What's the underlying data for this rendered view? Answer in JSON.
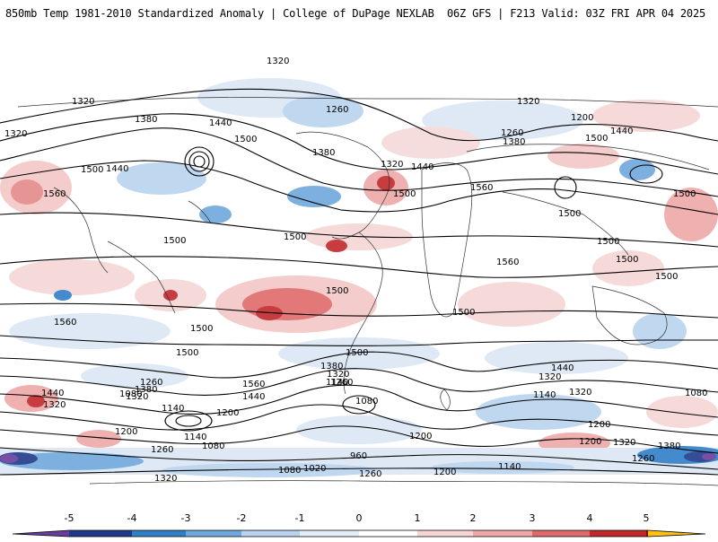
{
  "header": {
    "title_left": "850mb Temp 1981-2010 Standardized Anomaly | College of DuPage NEXLAB",
    "title_right": "06Z GFS | F213 Valid: 03Z FRI APR 04 2025"
  },
  "colorbar": {
    "ticks": [
      "-5",
      "-4",
      "-3",
      "-2",
      "-1",
      "0",
      "1",
      "2",
      "3",
      "4",
      "5"
    ],
    "colors": [
      "#6a3d9a",
      "#1f3a8a",
      "#2f7fc8",
      "#6fa8dc",
      "#b9d3ee",
      "#e4eef8",
      "#ffffff",
      "#f6d5d5",
      "#eea8a8",
      "#e06a6a",
      "#c0282b",
      "#7a0f14",
      "#ffc20e"
    ]
  },
  "contour_labels": [
    "1320",
    "1320",
    "1380",
    "1440",
    "1500",
    "1440",
    "1500",
    "1560",
    "1320",
    "1260",
    "1380",
    "1320",
    "1440",
    "1500",
    "1560",
    "1320",
    "1260",
    "1380",
    "1200",
    "1440",
    "1500",
    "1500",
    "1500",
    "1500",
    "1500",
    "1500",
    "1560",
    "1500",
    "1500",
    "1500",
    "1500",
    "1560",
    "1500",
    "1500",
    "1500",
    "1380",
    "1320",
    "1260",
    "1140",
    "1080",
    "1440",
    "1260",
    "1380",
    "1320",
    "1140",
    "1080",
    "1440",
    "1320",
    "1080",
    "1140",
    "1200",
    "1560",
    "1440",
    "1320",
    "1200",
    "1140",
    "1080",
    "1260",
    "1320",
    "960",
    "1200",
    "1200",
    "1320",
    "1380",
    "1260",
    "1200",
    "1140",
    "1080",
    "1020",
    "1260",
    "1200",
    "1320"
  ]
}
